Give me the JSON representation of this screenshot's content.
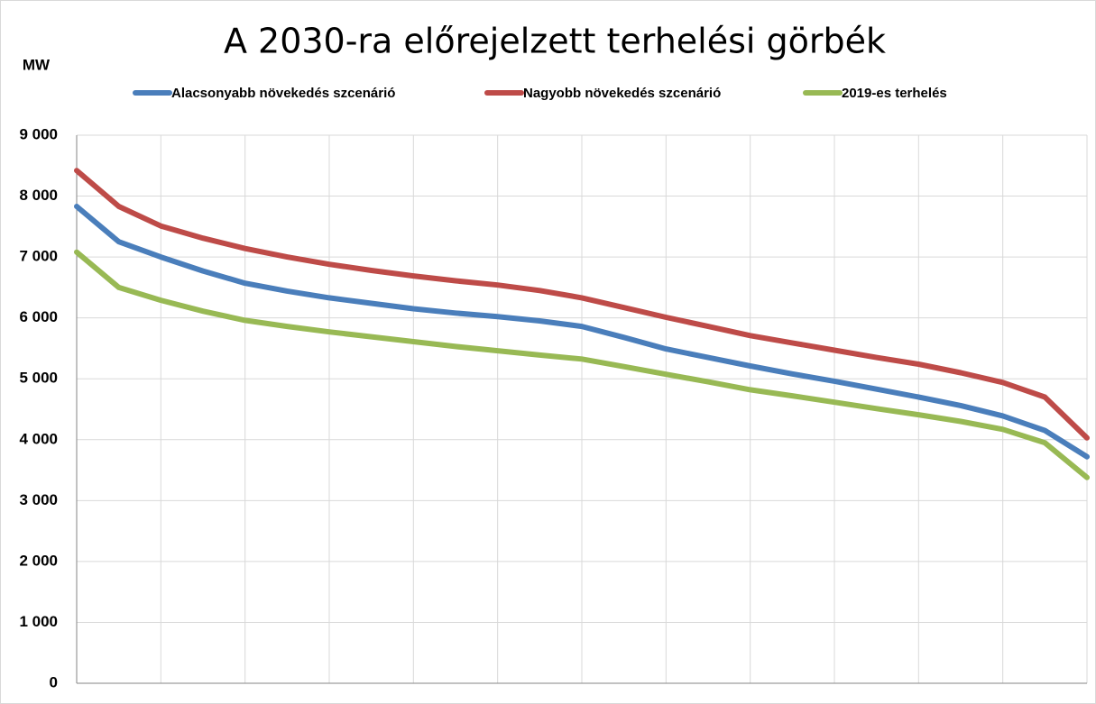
{
  "chart_data": {
    "type": "line",
    "title": "A 2030-ra előrejelzett terhelési görbék",
    "y_label": "MW",
    "categories": [
      null,
      null,
      null,
      null,
      null,
      null,
      null,
      null,
      null,
      null,
      null,
      null,
      null,
      null,
      null,
      null,
      null,
      null,
      null,
      null,
      null,
      null,
      null,
      null,
      null
    ],
    "series": [
      {
        "name": "Alacsonyabb növekedés szcenárió",
        "color": "#4a7ebb",
        "values": [
          7830,
          7250,
          7000,
          6770,
          6570,
          6440,
          6330,
          6240,
          6150,
          6080,
          6020,
          5950,
          5860,
          5680,
          5490,
          5350,
          5210,
          5080,
          4960,
          4830,
          4700,
          4560,
          4390,
          4150,
          3720
        ]
      },
      {
        "name": "Nagyobb növekedés szcenárió",
        "color": "#be4b48",
        "values": [
          8420,
          7830,
          7510,
          7310,
          7140,
          7000,
          6880,
          6780,
          6690,
          6610,
          6540,
          6450,
          6330,
          6170,
          6010,
          5860,
          5710,
          5590,
          5470,
          5350,
          5240,
          5100,
          4940,
          4700,
          4030
        ]
      },
      {
        "name": "2019-es terhelés",
        "color": "#98b954",
        "values": [
          7080,
          6500,
          6290,
          6110,
          5960,
          5860,
          5770,
          5690,
          5610,
          5530,
          5460,
          5390,
          5325,
          5200,
          5075,
          4950,
          4820,
          4720,
          4615,
          4510,
          4410,
          4300,
          4170,
          3950,
          3380
        ]
      }
    ],
    "ylim": [
      0,
      9000
    ],
    "yticks": [
      0,
      {
        "value": 1000,
        "label": "1 000"
      },
      {
        "value": 2000,
        "label": "2 000"
      },
      {
        "value": 3000,
        "label": "3 000"
      },
      {
        "value": 4000,
        "label": "4 000"
      },
      {
        "value": 5000,
        "label": "5 000"
      },
      {
        "value": 6000,
        "label": "6 000"
      },
      {
        "value": 7000,
        "label": "7 000"
      },
      {
        "value": 8000,
        "label": "8 000"
      },
      {
        "value": 9000,
        "label": "9 000"
      }
    ],
    "grid": true,
    "legend": "top"
  }
}
